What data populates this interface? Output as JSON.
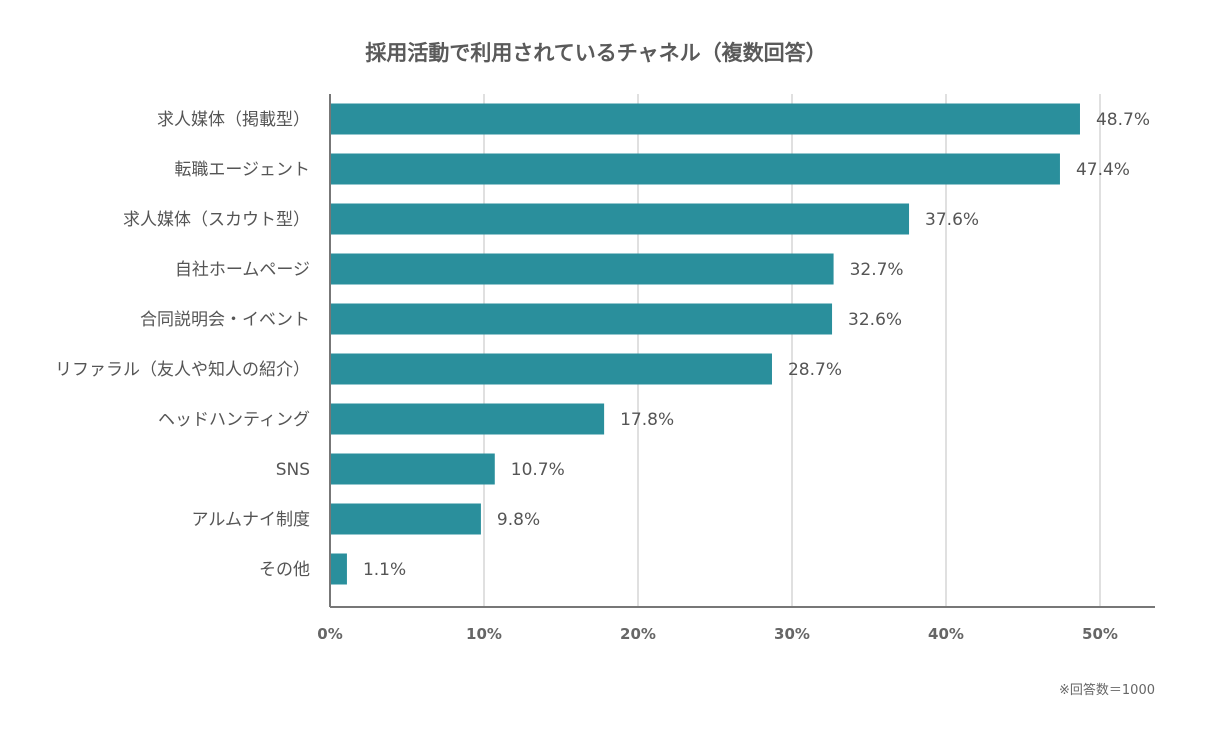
{
  "chart_data": {
    "type": "bar",
    "orientation": "horizontal",
    "title": "採用活動で利用されているチャネル（複数回答）",
    "categories": [
      "求人媒体（掲載型）",
      "転職エージェント",
      "求人媒体（スカウト型）",
      "自社ホームページ",
      "合同説明会・イベント",
      "リファラル（友人や知人の紹介）",
      "ヘッドハンティング",
      "SNS",
      "アルムナイ制度",
      "その他"
    ],
    "values": [
      48.7,
      47.4,
      37.6,
      32.7,
      32.6,
      28.7,
      17.8,
      10.7,
      9.8,
      1.1
    ],
    "value_labels": [
      "48.7%",
      "47.4%",
      "37.6%",
      "32.7%",
      "32.6%",
      "28.7%",
      "17.8%",
      "10.7%",
      "9.8%",
      "1.1%"
    ],
    "xlim": [
      0,
      50
    ],
    "x_ticks": [
      0,
      10,
      20,
      30,
      40,
      50
    ],
    "x_tick_labels": [
      "0%",
      "10%",
      "20%",
      "30%",
      "40%",
      "50%"
    ],
    "grid": true,
    "bar_color": "#2a8f9c",
    "grid_color": "#e0e0e0",
    "axis_color": "#777777",
    "note": "※回答数＝1000"
  }
}
